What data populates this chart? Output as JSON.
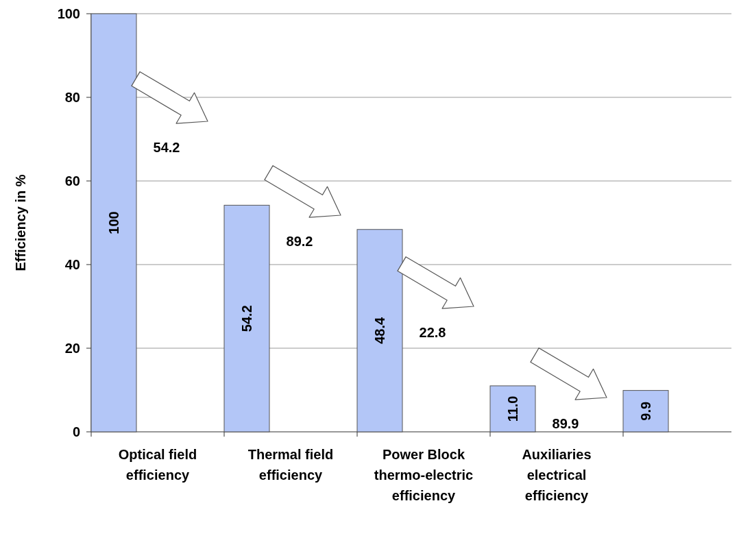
{
  "chart_data": {
    "type": "bar",
    "ylabel": "Efficiency in %",
    "categories": [
      "Optical field efficiency",
      "Thermal field efficiency",
      "Power Block thermo-electric efficiency",
      "Auxiliaries electrical efficiency",
      null
    ],
    "values": [
      100,
      54.2,
      48.4,
      11.0,
      9.9
    ],
    "value_labels": [
      "100",
      "54.2",
      "48.4",
      "11.0",
      "9.9"
    ],
    "color": "#b3c6f7",
    "ylim": [
      0,
      100
    ],
    "yticks": [
      0,
      20,
      40,
      60,
      80,
      100
    ],
    "grid": "y",
    "annotations": [
      "54.2",
      "89.2",
      "22.8",
      "89.9"
    ]
  }
}
